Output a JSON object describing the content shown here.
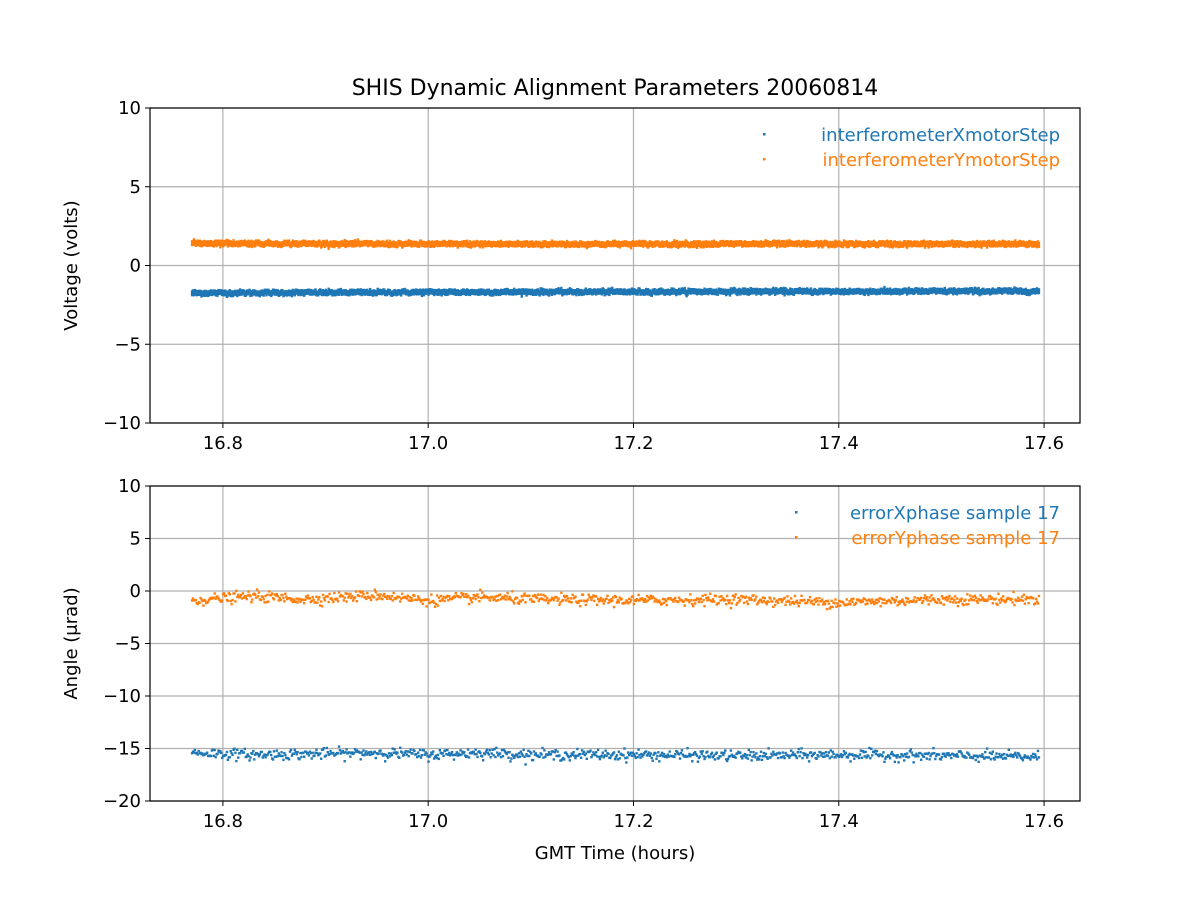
{
  "title": "SHIS Dynamic Alignment Parameters 20060814",
  "colors": {
    "blue": "#1f77b4",
    "orange": "#ff7f0e"
  },
  "chart_data": [
    {
      "type": "scatter",
      "ylabel": "Voltage (volts)",
      "xlabel": "",
      "xlim": [
        16.729,
        17.635
      ],
      "ylim": [
        -10,
        10
      ],
      "xticks": [
        16.8,
        17.0,
        17.2,
        17.4,
        17.6
      ],
      "xtick_labels": [
        "16.8",
        "17.0",
        "17.2",
        "17.4",
        "17.6"
      ],
      "yticks": [
        -10,
        -5,
        0,
        5,
        10
      ],
      "ytick_labels": [
        "−10",
        "−5",
        "0",
        "5",
        "10"
      ],
      "grid": true,
      "legend_position": "top-right",
      "x_range": [
        16.77,
        17.595
      ],
      "series": [
        {
          "name": "interferometerXmotorStep",
          "color": "#1f77b4",
          "x": [
            16.77,
            16.9,
            17.0,
            17.1,
            17.2,
            17.3,
            17.4,
            17.5,
            17.595
          ],
          "y": [
            -1.75,
            -1.72,
            -1.7,
            -1.68,
            -1.67,
            -1.65,
            -1.65,
            -1.64,
            -1.63
          ],
          "noise": 0.05
        },
        {
          "name": "interferometerYmotorStep",
          "color": "#ff7f0e",
          "x": [
            16.77,
            16.9,
            17.0,
            17.1,
            17.2,
            17.3,
            17.4,
            17.5,
            17.595
          ],
          "y": [
            1.42,
            1.38,
            1.36,
            1.36,
            1.36,
            1.37,
            1.36,
            1.36,
            1.36
          ],
          "noise": 0.05
        }
      ]
    },
    {
      "type": "scatter",
      "ylabel": "Angle (μrad)",
      "xlabel": "GMT Time (hours)",
      "xlim": [
        16.729,
        17.635
      ],
      "ylim": [
        -20,
        10
      ],
      "xticks": [
        16.8,
        17.0,
        17.2,
        17.4,
        17.6
      ],
      "xtick_labels": [
        "16.8",
        "17.0",
        "17.2",
        "17.4",
        "17.6"
      ],
      "yticks": [
        -20,
        -15,
        -10,
        -5,
        0,
        5,
        10
      ],
      "ytick_labels": [
        "−20",
        "−15",
        "−10",
        "−5",
        "0",
        "5",
        "10"
      ],
      "grid": true,
      "legend_position": "top-right",
      "x_range": [
        16.77,
        17.595
      ],
      "series": [
        {
          "name": "errorXphase sample 17",
          "color": "#1f77b4",
          "x": [
            16.77,
            16.83,
            16.9,
            16.95,
            17.0,
            17.05,
            17.1,
            17.2,
            17.3,
            17.4,
            17.5,
            17.595
          ],
          "y": [
            -15.4,
            -15.6,
            -15.5,
            -15.4,
            -15.6,
            -15.4,
            -15.6,
            -15.6,
            -15.7,
            -15.6,
            -15.7,
            -15.8
          ],
          "noise": 0.25
        },
        {
          "name": "errorYphase sample 17",
          "color": "#ff7f0e",
          "x": [
            16.77,
            16.83,
            16.88,
            16.95,
            17.0,
            17.05,
            17.1,
            17.2,
            17.3,
            17.4,
            17.5,
            17.595
          ],
          "y": [
            -0.9,
            -0.5,
            -0.8,
            -0.4,
            -0.9,
            -0.6,
            -0.8,
            -0.9,
            -0.8,
            -1.1,
            -0.8,
            -0.8
          ],
          "noise": 0.25
        }
      ]
    }
  ]
}
